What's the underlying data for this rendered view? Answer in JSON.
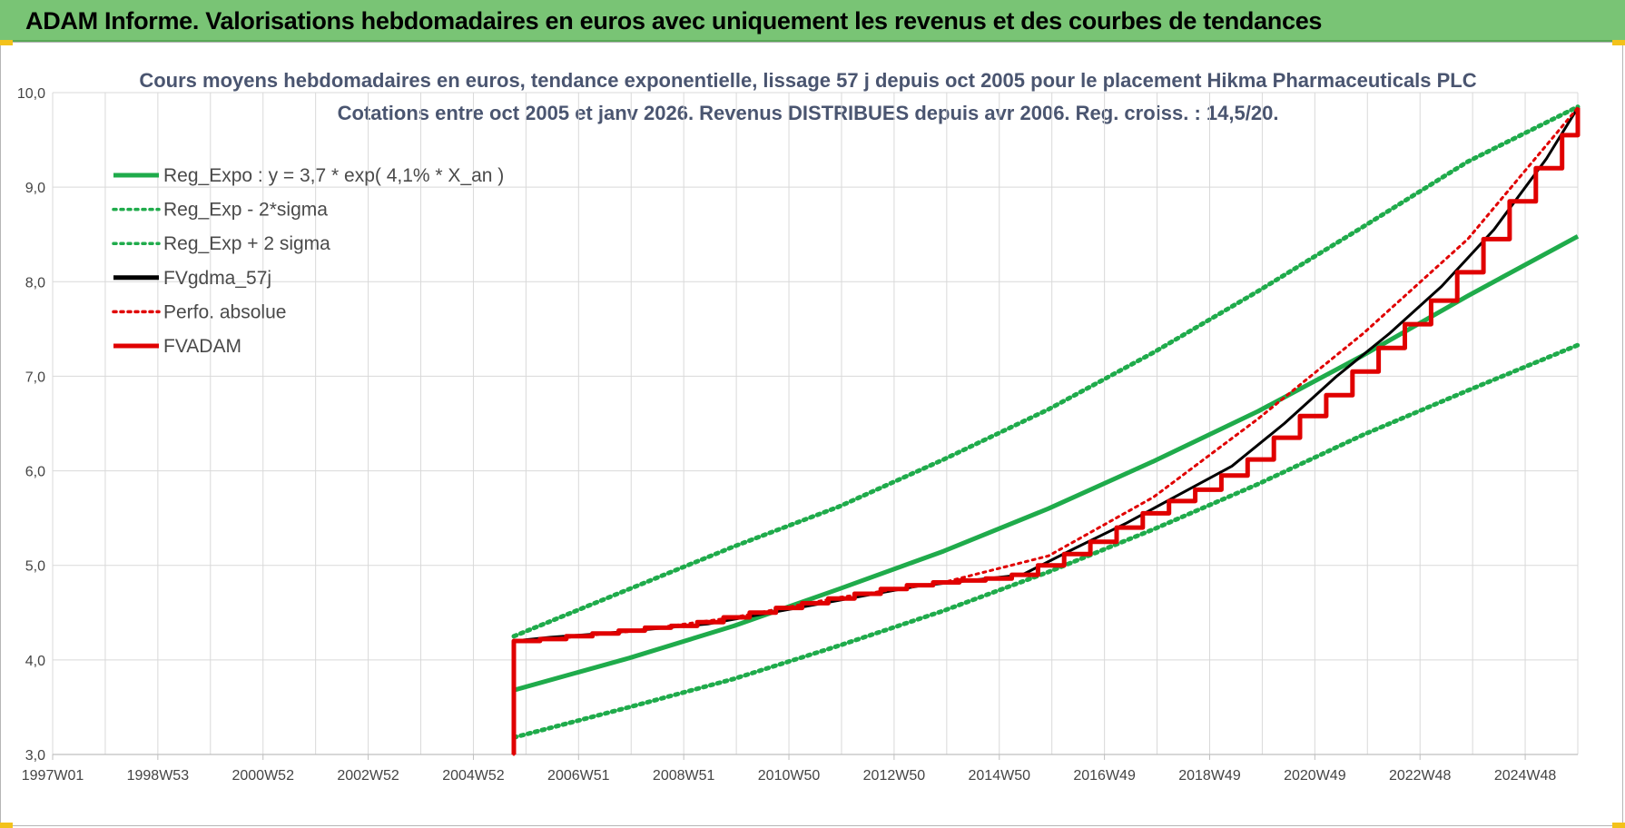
{
  "header": {
    "title": "ADAM Informe. Valorisations hebdomadaires en euros avec uniquement les revenus et des courbes de tendances"
  },
  "chart_data": {
    "type": "line",
    "title": "Cours moyens hebdomadaires en euros, tendance exponentielle, lissage 57 j depuis oct 2005 pour le placement Hikma Pharmaceuticals PLC",
    "subtitle": "Cotations entre oct 2005 et janv 2026. Revenus DISTRIBUES depuis avr 2006. Reg. croiss. : 14,5/20.",
    "xlabel": "",
    "ylabel": "",
    "ylim": [
      3.0,
      10.0
    ],
    "yticks": [
      "3,0",
      "4,0",
      "5,0",
      "6,0",
      "7,0",
      "8,0",
      "9,0",
      "10,0"
    ],
    "xticks": [
      "1997W01",
      "1998W53",
      "2000W52",
      "2002W52",
      "2004W52",
      "2006W51",
      "2008W51",
      "2010W50",
      "2012W50",
      "2014W50",
      "2016W49",
      "2018W49",
      "2020W49",
      "2022W48",
      "2024W48"
    ],
    "xlim": [
      1997.0,
      2026.1
    ],
    "grid": true,
    "legend_position": "top-left",
    "colors": {
      "green": "#1fab4b",
      "black": "#000000",
      "red": "#e00000"
    },
    "series": [
      {
        "name": "Reg_Expo : y = 3,7 * exp( 4,1% *  X_an )",
        "style": "solid",
        "color": "#1fab4b",
        "x": [
          2005.8,
          2008.0,
          2010.0,
          2012.0,
          2014.0,
          2016.0,
          2018.0,
          2020.0,
          2022.0,
          2024.0,
          2026.1
        ],
        "y": [
          3.68,
          4.02,
          4.36,
          4.75,
          5.15,
          5.6,
          6.1,
          6.63,
          7.22,
          7.85,
          8.48
        ]
      },
      {
        "name": "Reg_Exp - 2*sigma",
        "style": "dotted",
        "color": "#1fab4b",
        "x": [
          2005.8,
          2008.0,
          2010.0,
          2012.0,
          2014.0,
          2016.0,
          2018.0,
          2020.0,
          2022.0,
          2024.0,
          2026.1
        ],
        "y": [
          3.18,
          3.5,
          3.8,
          4.15,
          4.52,
          4.93,
          5.38,
          5.86,
          6.38,
          6.85,
          7.33
        ]
      },
      {
        "name": "Reg_Exp + 2 sigma",
        "style": "dotted",
        "color": "#1fab4b",
        "x": [
          2005.8,
          2008.0,
          2010.0,
          2012.0,
          2014.0,
          2016.0,
          2018.0,
          2020.0,
          2022.0,
          2024.0,
          2026.1
        ],
        "y": [
          4.25,
          4.75,
          5.2,
          5.62,
          6.12,
          6.65,
          7.25,
          7.9,
          8.58,
          9.27,
          9.85
        ]
      },
      {
        "name": "FVgdma_57j",
        "style": "solid",
        "color": "#000000",
        "x": [
          2005.8,
          2006.5,
          2007.5,
          2008.5,
          2009.5,
          2010.5,
          2011.5,
          2012.5,
          2013.5,
          2014.5,
          2015.5,
          2016.5,
          2017.5,
          2018.5,
          2019.5,
          2020.5,
          2021.5,
          2022.5,
          2023.5,
          2024.5,
          2025.5,
          2026.1
        ],
        "y": [
          4.2,
          4.24,
          4.28,
          4.33,
          4.38,
          4.48,
          4.58,
          4.68,
          4.78,
          4.84,
          4.9,
          5.18,
          5.45,
          5.75,
          6.05,
          6.5,
          7.0,
          7.45,
          7.95,
          8.55,
          9.3,
          9.84
        ]
      },
      {
        "name": "Perfo. absolue",
        "style": "dotted",
        "color": "#e00000",
        "x": [
          2005.8,
          2005.8,
          2006.5,
          2008.0,
          2010.0,
          2012.0,
          2014.0,
          2016.0,
          2018.0,
          2020.0,
          2022.0,
          2024.0,
          2026.1
        ],
        "y": [
          3.0,
          4.2,
          4.22,
          4.3,
          4.45,
          4.66,
          4.82,
          5.1,
          5.72,
          6.55,
          7.45,
          8.45,
          9.84
        ]
      },
      {
        "name": "FVADAM",
        "style": "solid",
        "color": "#e00000",
        "x": [
          2005.8,
          2005.8,
          2006.3,
          2006.8,
          2007.3,
          2007.8,
          2008.3,
          2008.8,
          2009.3,
          2009.8,
          2010.3,
          2010.8,
          2011.3,
          2011.8,
          2012.3,
          2012.8,
          2013.3,
          2013.8,
          2014.3,
          2014.8,
          2015.3,
          2015.8,
          2016.3,
          2016.8,
          2017.3,
          2017.8,
          2018.3,
          2018.8,
          2019.3,
          2019.8,
          2020.3,
          2020.8,
          2021.3,
          2021.8,
          2022.3,
          2022.8,
          2023.3,
          2023.8,
          2024.3,
          2024.8,
          2025.3,
          2025.8,
          2026.1
        ],
        "y": [
          3.0,
          4.2,
          4.22,
          4.25,
          4.28,
          4.31,
          4.34,
          4.36,
          4.4,
          4.45,
          4.5,
          4.55,
          4.6,
          4.65,
          4.7,
          4.75,
          4.79,
          4.82,
          4.84,
          4.86,
          4.9,
          5.0,
          5.12,
          5.25,
          5.4,
          5.55,
          5.68,
          5.8,
          5.95,
          6.12,
          6.35,
          6.58,
          6.8,
          7.05,
          7.3,
          7.55,
          7.8,
          8.1,
          8.45,
          8.85,
          9.2,
          9.55,
          9.84
        ]
      }
    ]
  }
}
